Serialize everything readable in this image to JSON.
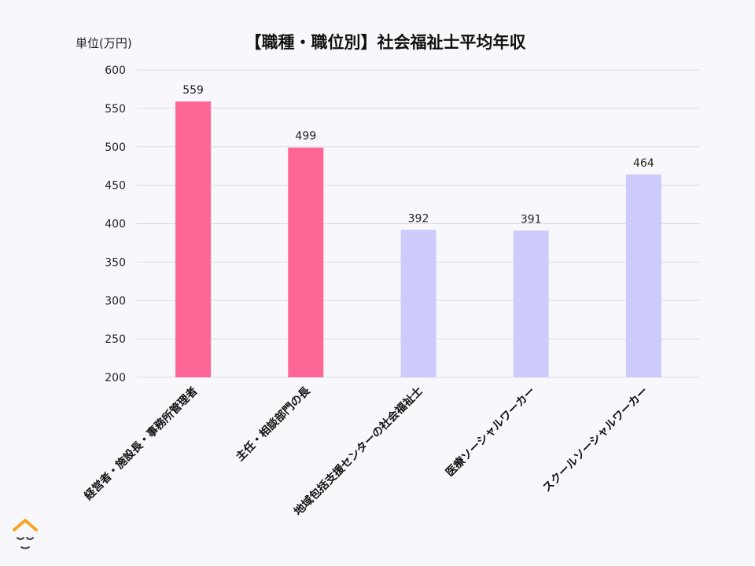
{
  "unit_label": "単位(万円)",
  "chart_data": {
    "type": "bar",
    "title": "【職種・職位別】社会福祉士平均年収",
    "xlabel": "",
    "ylabel": "",
    "ylim": [
      200,
      600
    ],
    "yticks": [
      200,
      250,
      300,
      350,
      400,
      450,
      500,
      550,
      600
    ],
    "grid": true,
    "categories": [
      "経営者・施設長・事務所管理者",
      "主任・相談部門の長",
      "地域包括支援センターの社会福祉士",
      "医療ソーシャルワーカー",
      "スクールソーシャルワーカー"
    ],
    "values": [
      559,
      499,
      392,
      391,
      464
    ],
    "colors": [
      "#fe6696",
      "#fe6696",
      "#cccbfb",
      "#cccbfb",
      "#cccbfb"
    ]
  },
  "colors": {
    "background": "#f8f7fc",
    "grid": "#dcdce6",
    "logo": "#f5a623"
  }
}
